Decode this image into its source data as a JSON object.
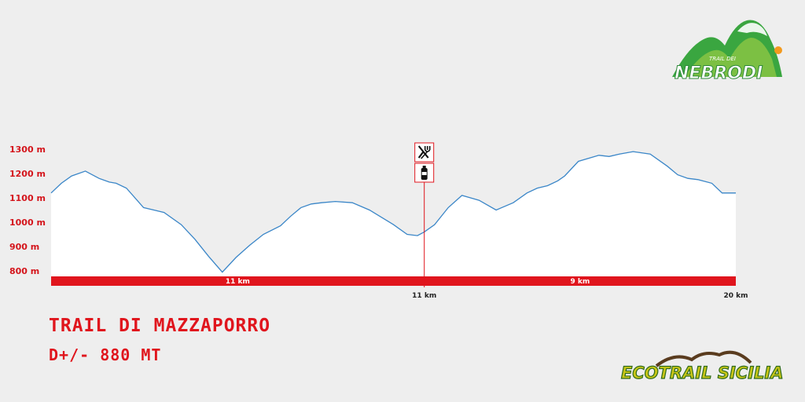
{
  "page": {
    "background": "#eeeeee"
  },
  "title": "TRAIL DI MAZZAPORRO",
  "elevation_gain": "D+/- 880 MT",
  "logo_top": {
    "small_text": "TRAIL DEI",
    "big_text": "NEBRODI"
  },
  "logo_bottom": {
    "text": "ECOTRAIL SICILIA"
  },
  "colors": {
    "accent": "#e0151d",
    "profile_line": "#3a86c8",
    "profile_fill": "#ffffff",
    "axis_text": "#d4141b"
  },
  "chart_data": {
    "type": "area",
    "title": "",
    "xlabel": "",
    "ylabel": "",
    "xlim": [
      0,
      20
    ],
    "ylim": [
      780,
      1300
    ],
    "yticks": [
      1300,
      1200,
      1100,
      1000,
      900,
      800
    ],
    "ytick_labels": [
      "1300 m",
      "1200 m",
      "1100 m",
      "1000 m",
      "900 m",
      "800 m"
    ],
    "x": [
      0,
      0.3,
      0.6,
      1.0,
      1.4,
      1.7,
      1.9,
      2.2,
      2.7,
      3.0,
      3.3,
      3.8,
      4.2,
      4.6,
      5.0,
      5.4,
      5.8,
      6.2,
      6.7,
      7.0,
      7.3,
      7.6,
      7.9,
      8.3,
      8.8,
      9.3,
      10.0,
      10.4,
      10.7,
      10.9,
      11.2,
      11.6,
      12.0,
      12.5,
      13.0,
      13.5,
      13.9,
      14.2,
      14.5,
      14.8,
      15.0,
      15.4,
      16.0,
      16.3,
      16.6,
      17.0,
      17.5,
      18.0,
      18.3,
      18.6,
      18.9,
      19.3,
      19.6,
      20.0
    ],
    "y": [
      1120,
      1160,
      1190,
      1210,
      1180,
      1165,
      1160,
      1140,
      1060,
      1050,
      1040,
      990,
      930,
      860,
      795,
      855,
      905,
      950,
      985,
      1025,
      1060,
      1075,
      1080,
      1085,
      1080,
      1050,
      990,
      950,
      945,
      960,
      990,
      1060,
      1110,
      1090,
      1050,
      1080,
      1120,
      1140,
      1150,
      1170,
      1190,
      1250,
      1275,
      1270,
      1280,
      1290,
      1280,
      1230,
      1195,
      1180,
      1175,
      1160,
      1120,
      1120
    ],
    "segments": [
      {
        "label": "11 km",
        "from": 0,
        "to": 10.9
      },
      {
        "label": "9 km",
        "from": 10.9,
        "to": 20
      }
    ],
    "km_markers": [
      {
        "label": "11 km",
        "x": 10.9
      },
      {
        "label": "20 km",
        "x": 20
      }
    ],
    "aid_station": {
      "x": 10.9,
      "icons": [
        "food-icon",
        "drink-icon"
      ]
    }
  }
}
